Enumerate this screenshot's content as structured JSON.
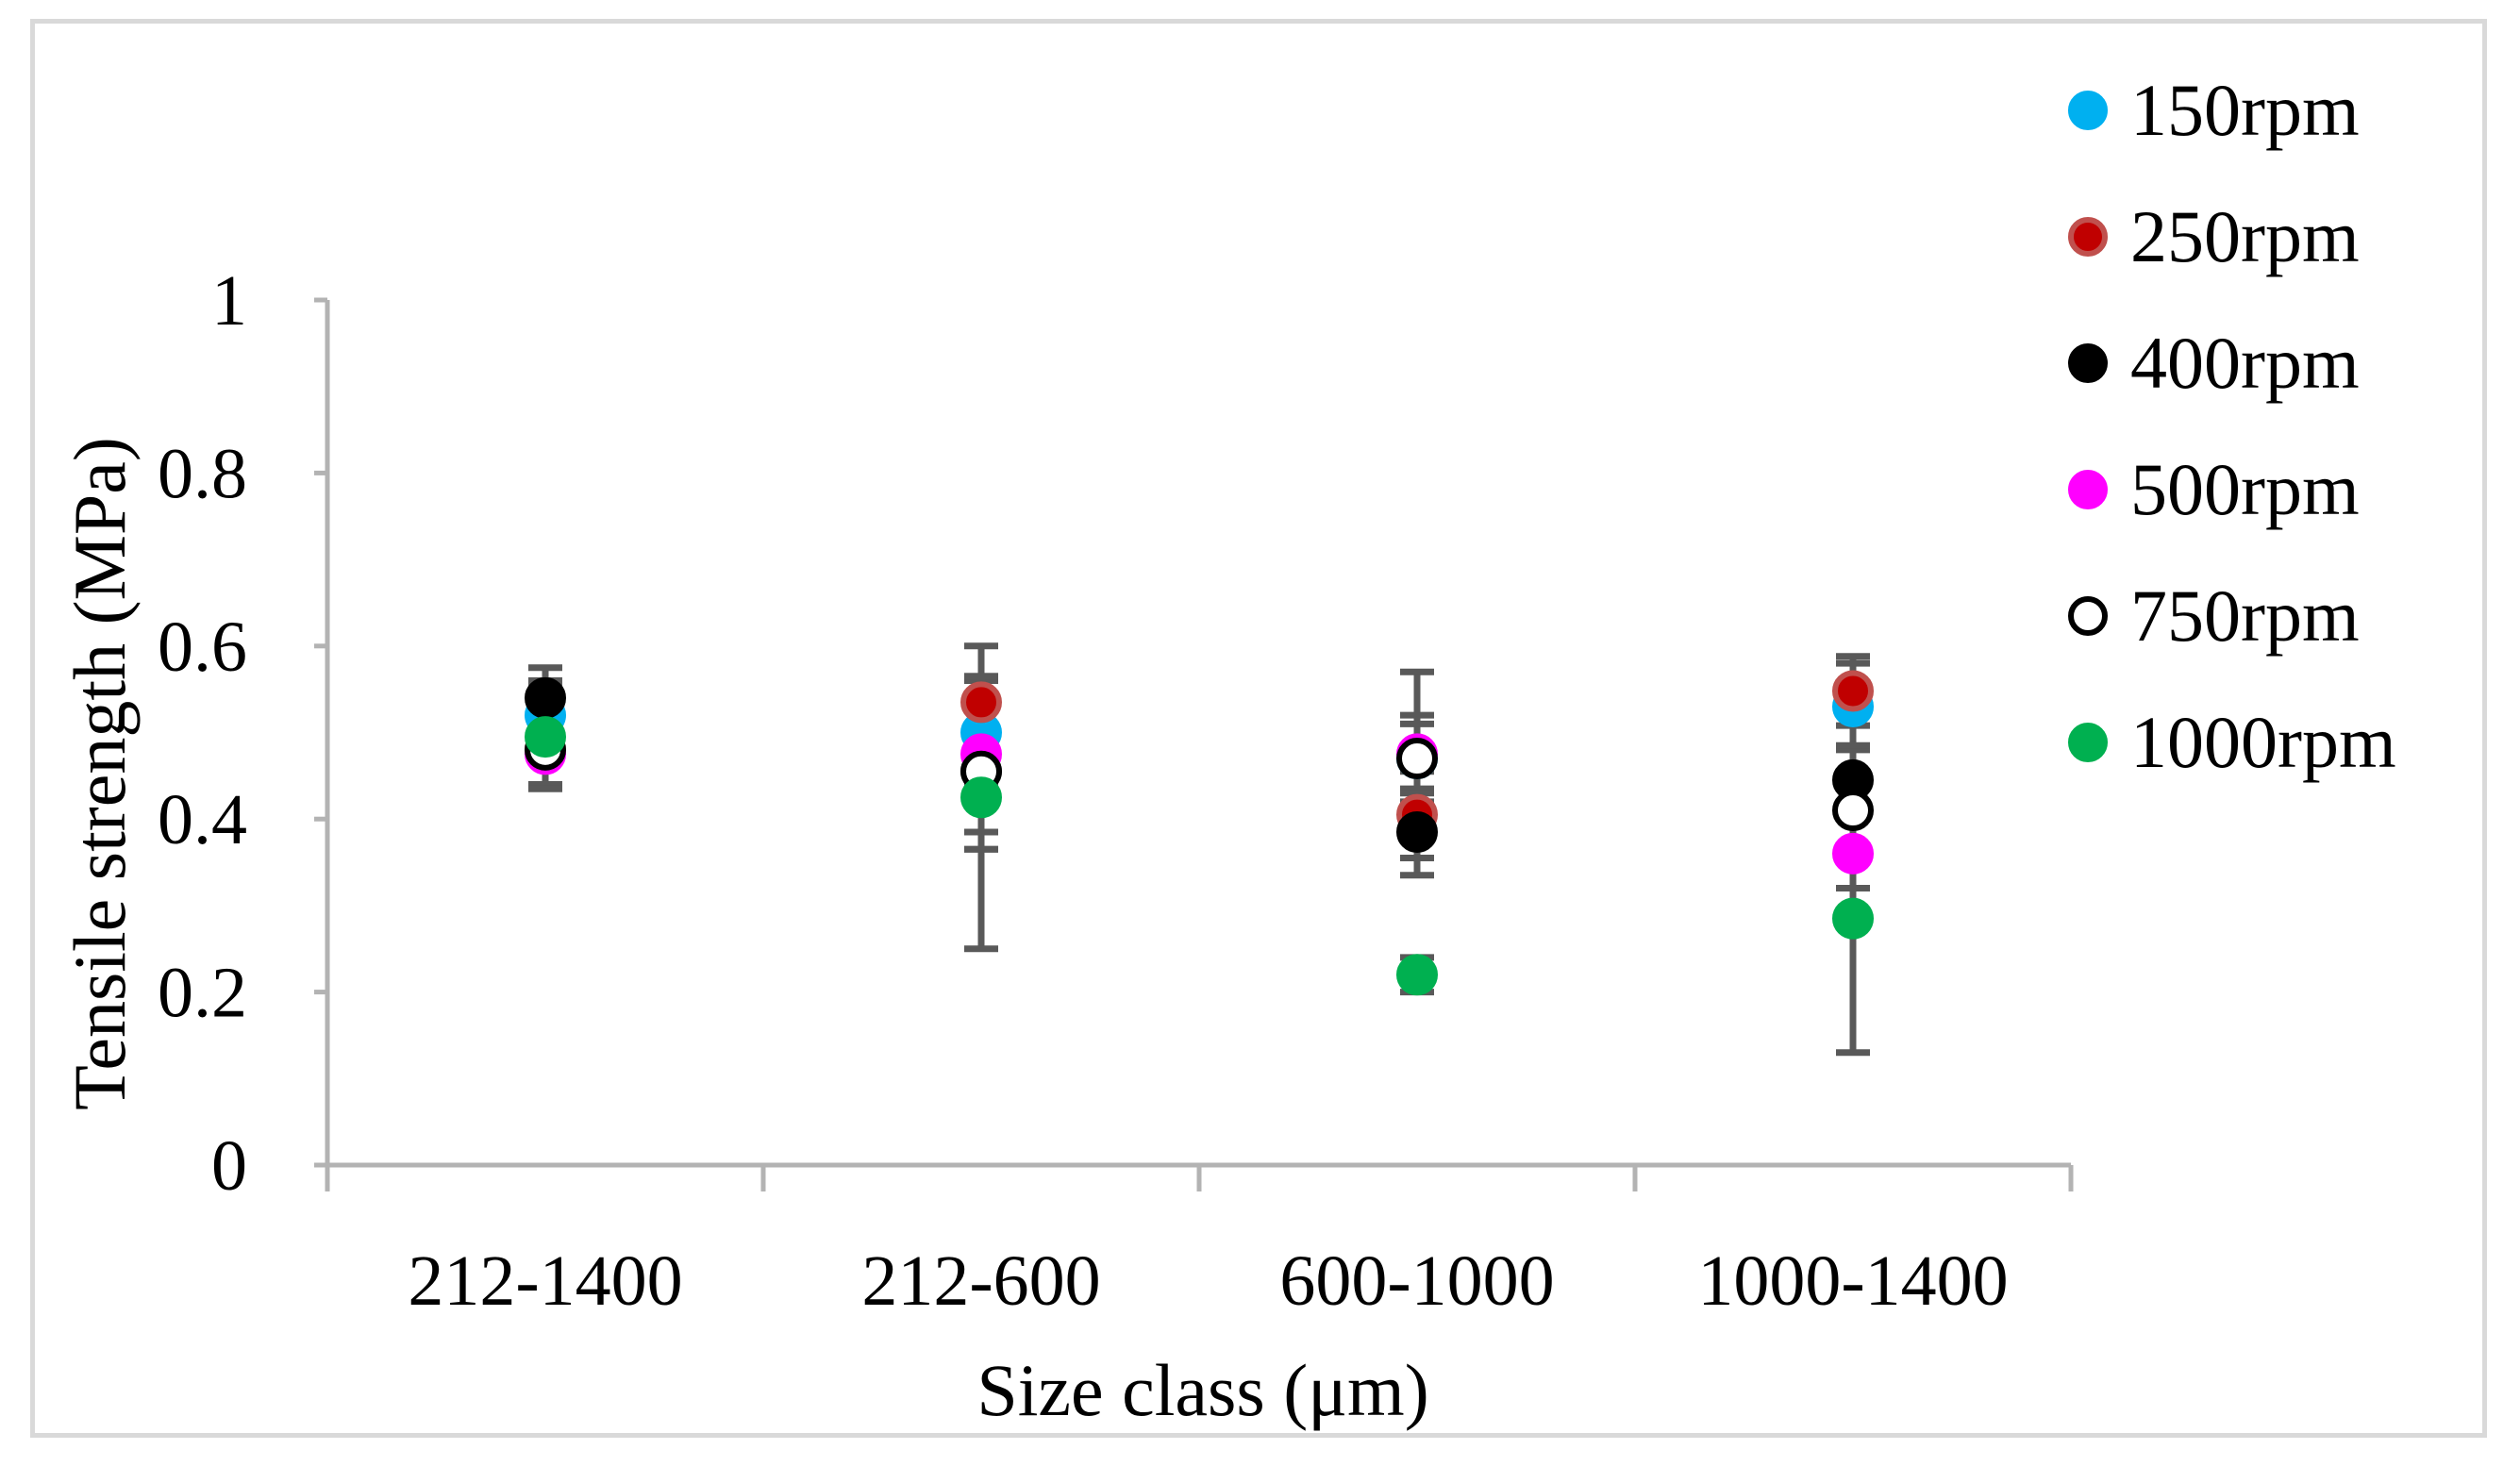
{
  "chart_data": {
    "type": "scatter",
    "title": "",
    "xlabel": "Size class (μm)",
    "ylabel": "Tensile strength (MPa)",
    "categories": [
      "212-1400",
      "212-600",
      "600-1000",
      "1000-1400"
    ],
    "ylim": [
      0,
      1
    ],
    "yticks": [
      0,
      0.2,
      0.4,
      0.6,
      0.8,
      1
    ],
    "ytick_labels": [
      "0",
      "0.2",
      "0.4",
      "0.6",
      "0.8",
      "1"
    ],
    "grid": false,
    "legend_position": "right",
    "series": [
      {
        "name": "150rpm",
        "fill": "#00b0f0",
        "stroke": "#00b0f0",
        "values": [
          0.52,
          0.5,
          0.47,
          0.53
        ],
        "errors": [
          0.04,
          0.06,
          0.05,
          0.05
        ]
      },
      {
        "name": "250rpm",
        "fill": "#c00000",
        "stroke": "#c0504d",
        "values": [
          0.48,
          0.535,
          0.405,
          0.548
        ],
        "errors": [
          0.04,
          0.03,
          0.05,
          0.04
        ]
      },
      {
        "name": "400rpm",
        "fill": "#000000",
        "stroke": "#000000",
        "values": [
          0.54,
          0.455,
          0.385,
          0.445
        ],
        "errors": [
          0.035,
          0.09,
          0.05,
          0.04
        ]
      },
      {
        "name": "500rpm",
        "fill": "#ff00ff",
        "stroke": "#ff00ff",
        "values": [
          0.475,
          0.475,
          0.475,
          0.36
        ],
        "errors": [
          0.04,
          0.09,
          0.095,
          0.04
        ]
      },
      {
        "name": "750rpm",
        "fill": "#ffffff",
        "stroke": "#000000",
        "values": [
          0.48,
          0.455,
          0.47,
          0.41
        ],
        "errors": [
          0.04,
          0.09,
          0.04,
          0.04
        ]
      },
      {
        "name": "1000rpm",
        "fill": "#00b050",
        "stroke": "#00b050",
        "values": [
          0.495,
          0.425,
          0.22,
          0.285
        ],
        "errors": [
          0.06,
          0.175,
          0.02,
          0.155
        ]
      }
    ]
  }
}
